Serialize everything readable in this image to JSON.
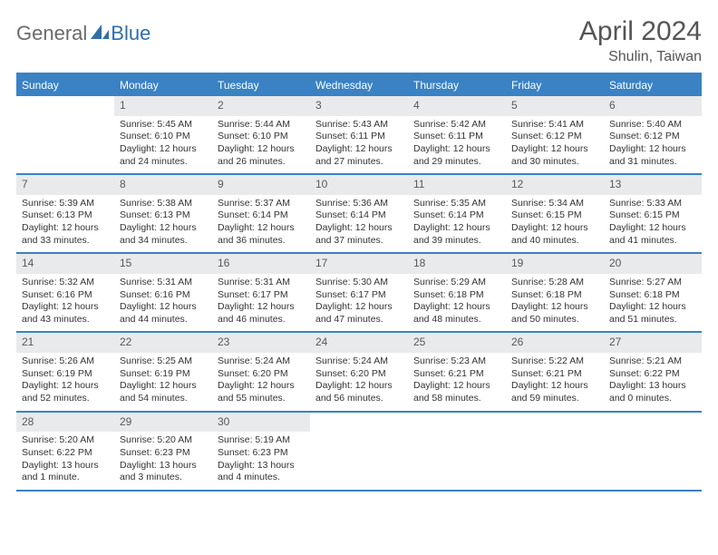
{
  "branding": {
    "word1": "General",
    "word2": "Blue",
    "word1_color": "#6a6a6a",
    "word2_color": "#2f6fa9",
    "icon_color": "#2f6fa9"
  },
  "title": "April 2024",
  "subtitle": "Shulin, Taiwan",
  "colors": {
    "header_bg": "#3a82c4",
    "header_text": "#ffffff",
    "daynum_bg": "#e9eaeb",
    "daynum_text": "#58595b",
    "body_text": "#333333",
    "rule": "#3a82c4",
    "page_bg": "#ffffff"
  },
  "typography": {
    "title_fontsize": 30,
    "subtitle_fontsize": 16,
    "dayheader_fontsize": 12,
    "daynum_fontsize": 12,
    "cell_fontsize": 10.5
  },
  "dayNames": [
    "Sunday",
    "Monday",
    "Tuesday",
    "Wednesday",
    "Thursday",
    "Friday",
    "Saturday"
  ],
  "weeks": [
    [
      {
        "empty": true
      },
      {
        "day": "1",
        "sunrise": "Sunrise: 5:45 AM",
        "sunset": "Sunset: 6:10 PM",
        "daylight1": "Daylight: 12 hours",
        "daylight2": "and 24 minutes."
      },
      {
        "day": "2",
        "sunrise": "Sunrise: 5:44 AM",
        "sunset": "Sunset: 6:10 PM",
        "daylight1": "Daylight: 12 hours",
        "daylight2": "and 26 minutes."
      },
      {
        "day": "3",
        "sunrise": "Sunrise: 5:43 AM",
        "sunset": "Sunset: 6:11 PM",
        "daylight1": "Daylight: 12 hours",
        "daylight2": "and 27 minutes."
      },
      {
        "day": "4",
        "sunrise": "Sunrise: 5:42 AM",
        "sunset": "Sunset: 6:11 PM",
        "daylight1": "Daylight: 12 hours",
        "daylight2": "and 29 minutes."
      },
      {
        "day": "5",
        "sunrise": "Sunrise: 5:41 AM",
        "sunset": "Sunset: 6:12 PM",
        "daylight1": "Daylight: 12 hours",
        "daylight2": "and 30 minutes."
      },
      {
        "day": "6",
        "sunrise": "Sunrise: 5:40 AM",
        "sunset": "Sunset: 6:12 PM",
        "daylight1": "Daylight: 12 hours",
        "daylight2": "and 31 minutes."
      }
    ],
    [
      {
        "day": "7",
        "sunrise": "Sunrise: 5:39 AM",
        "sunset": "Sunset: 6:13 PM",
        "daylight1": "Daylight: 12 hours",
        "daylight2": "and 33 minutes."
      },
      {
        "day": "8",
        "sunrise": "Sunrise: 5:38 AM",
        "sunset": "Sunset: 6:13 PM",
        "daylight1": "Daylight: 12 hours",
        "daylight2": "and 34 minutes."
      },
      {
        "day": "9",
        "sunrise": "Sunrise: 5:37 AM",
        "sunset": "Sunset: 6:14 PM",
        "daylight1": "Daylight: 12 hours",
        "daylight2": "and 36 minutes."
      },
      {
        "day": "10",
        "sunrise": "Sunrise: 5:36 AM",
        "sunset": "Sunset: 6:14 PM",
        "daylight1": "Daylight: 12 hours",
        "daylight2": "and 37 minutes."
      },
      {
        "day": "11",
        "sunrise": "Sunrise: 5:35 AM",
        "sunset": "Sunset: 6:14 PM",
        "daylight1": "Daylight: 12 hours",
        "daylight2": "and 39 minutes."
      },
      {
        "day": "12",
        "sunrise": "Sunrise: 5:34 AM",
        "sunset": "Sunset: 6:15 PM",
        "daylight1": "Daylight: 12 hours",
        "daylight2": "and 40 minutes."
      },
      {
        "day": "13",
        "sunrise": "Sunrise: 5:33 AM",
        "sunset": "Sunset: 6:15 PM",
        "daylight1": "Daylight: 12 hours",
        "daylight2": "and 41 minutes."
      }
    ],
    [
      {
        "day": "14",
        "sunrise": "Sunrise: 5:32 AM",
        "sunset": "Sunset: 6:16 PM",
        "daylight1": "Daylight: 12 hours",
        "daylight2": "and 43 minutes."
      },
      {
        "day": "15",
        "sunrise": "Sunrise: 5:31 AM",
        "sunset": "Sunset: 6:16 PM",
        "daylight1": "Daylight: 12 hours",
        "daylight2": "and 44 minutes."
      },
      {
        "day": "16",
        "sunrise": "Sunrise: 5:31 AM",
        "sunset": "Sunset: 6:17 PM",
        "daylight1": "Daylight: 12 hours",
        "daylight2": "and 46 minutes."
      },
      {
        "day": "17",
        "sunrise": "Sunrise: 5:30 AM",
        "sunset": "Sunset: 6:17 PM",
        "daylight1": "Daylight: 12 hours",
        "daylight2": "and 47 minutes."
      },
      {
        "day": "18",
        "sunrise": "Sunrise: 5:29 AM",
        "sunset": "Sunset: 6:18 PM",
        "daylight1": "Daylight: 12 hours",
        "daylight2": "and 48 minutes."
      },
      {
        "day": "19",
        "sunrise": "Sunrise: 5:28 AM",
        "sunset": "Sunset: 6:18 PM",
        "daylight1": "Daylight: 12 hours",
        "daylight2": "and 50 minutes."
      },
      {
        "day": "20",
        "sunrise": "Sunrise: 5:27 AM",
        "sunset": "Sunset: 6:18 PM",
        "daylight1": "Daylight: 12 hours",
        "daylight2": "and 51 minutes."
      }
    ],
    [
      {
        "day": "21",
        "sunrise": "Sunrise: 5:26 AM",
        "sunset": "Sunset: 6:19 PM",
        "daylight1": "Daylight: 12 hours",
        "daylight2": "and 52 minutes."
      },
      {
        "day": "22",
        "sunrise": "Sunrise: 5:25 AM",
        "sunset": "Sunset: 6:19 PM",
        "daylight1": "Daylight: 12 hours",
        "daylight2": "and 54 minutes."
      },
      {
        "day": "23",
        "sunrise": "Sunrise: 5:24 AM",
        "sunset": "Sunset: 6:20 PM",
        "daylight1": "Daylight: 12 hours",
        "daylight2": "and 55 minutes."
      },
      {
        "day": "24",
        "sunrise": "Sunrise: 5:24 AM",
        "sunset": "Sunset: 6:20 PM",
        "daylight1": "Daylight: 12 hours",
        "daylight2": "and 56 minutes."
      },
      {
        "day": "25",
        "sunrise": "Sunrise: 5:23 AM",
        "sunset": "Sunset: 6:21 PM",
        "daylight1": "Daylight: 12 hours",
        "daylight2": "and 58 minutes."
      },
      {
        "day": "26",
        "sunrise": "Sunrise: 5:22 AM",
        "sunset": "Sunset: 6:21 PM",
        "daylight1": "Daylight: 12 hours",
        "daylight2": "and 59 minutes."
      },
      {
        "day": "27",
        "sunrise": "Sunrise: 5:21 AM",
        "sunset": "Sunset: 6:22 PM",
        "daylight1": "Daylight: 13 hours",
        "daylight2": "and 0 minutes."
      }
    ],
    [
      {
        "day": "28",
        "sunrise": "Sunrise: 5:20 AM",
        "sunset": "Sunset: 6:22 PM",
        "daylight1": "Daylight: 13 hours",
        "daylight2": "and 1 minute."
      },
      {
        "day": "29",
        "sunrise": "Sunrise: 5:20 AM",
        "sunset": "Sunset: 6:23 PM",
        "daylight1": "Daylight: 13 hours",
        "daylight2": "and 3 minutes."
      },
      {
        "day": "30",
        "sunrise": "Sunrise: 5:19 AM",
        "sunset": "Sunset: 6:23 PM",
        "daylight1": "Daylight: 13 hours",
        "daylight2": "and 4 minutes."
      },
      {
        "empty": true
      },
      {
        "empty": true
      },
      {
        "empty": true
      },
      {
        "empty": true
      }
    ]
  ]
}
